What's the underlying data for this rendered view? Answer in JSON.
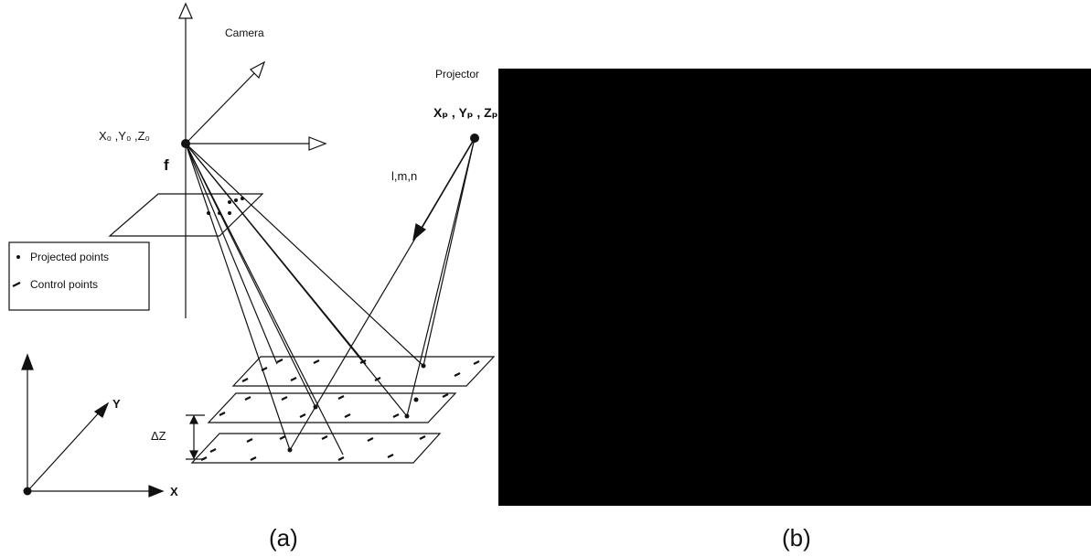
{
  "panel_a": {
    "camera_label": "Camera",
    "projector_label": "Projector",
    "camera_center_label": "X₀ ,Y₀ ,Z₀",
    "projector_center_label": "Xₚ , Yₚ , Zₚ",
    "focal_label": "f",
    "direction_label": "l,m,n",
    "legend": {
      "projected_points": "Projected points",
      "control_points": "Control points"
    },
    "axis_x": "X",
    "axis_y": "Y",
    "delta_z": "ΔZ",
    "caption": "(a)"
  },
  "panel_b": {
    "caption": "(b)",
    "fill_color": "#000000"
  }
}
